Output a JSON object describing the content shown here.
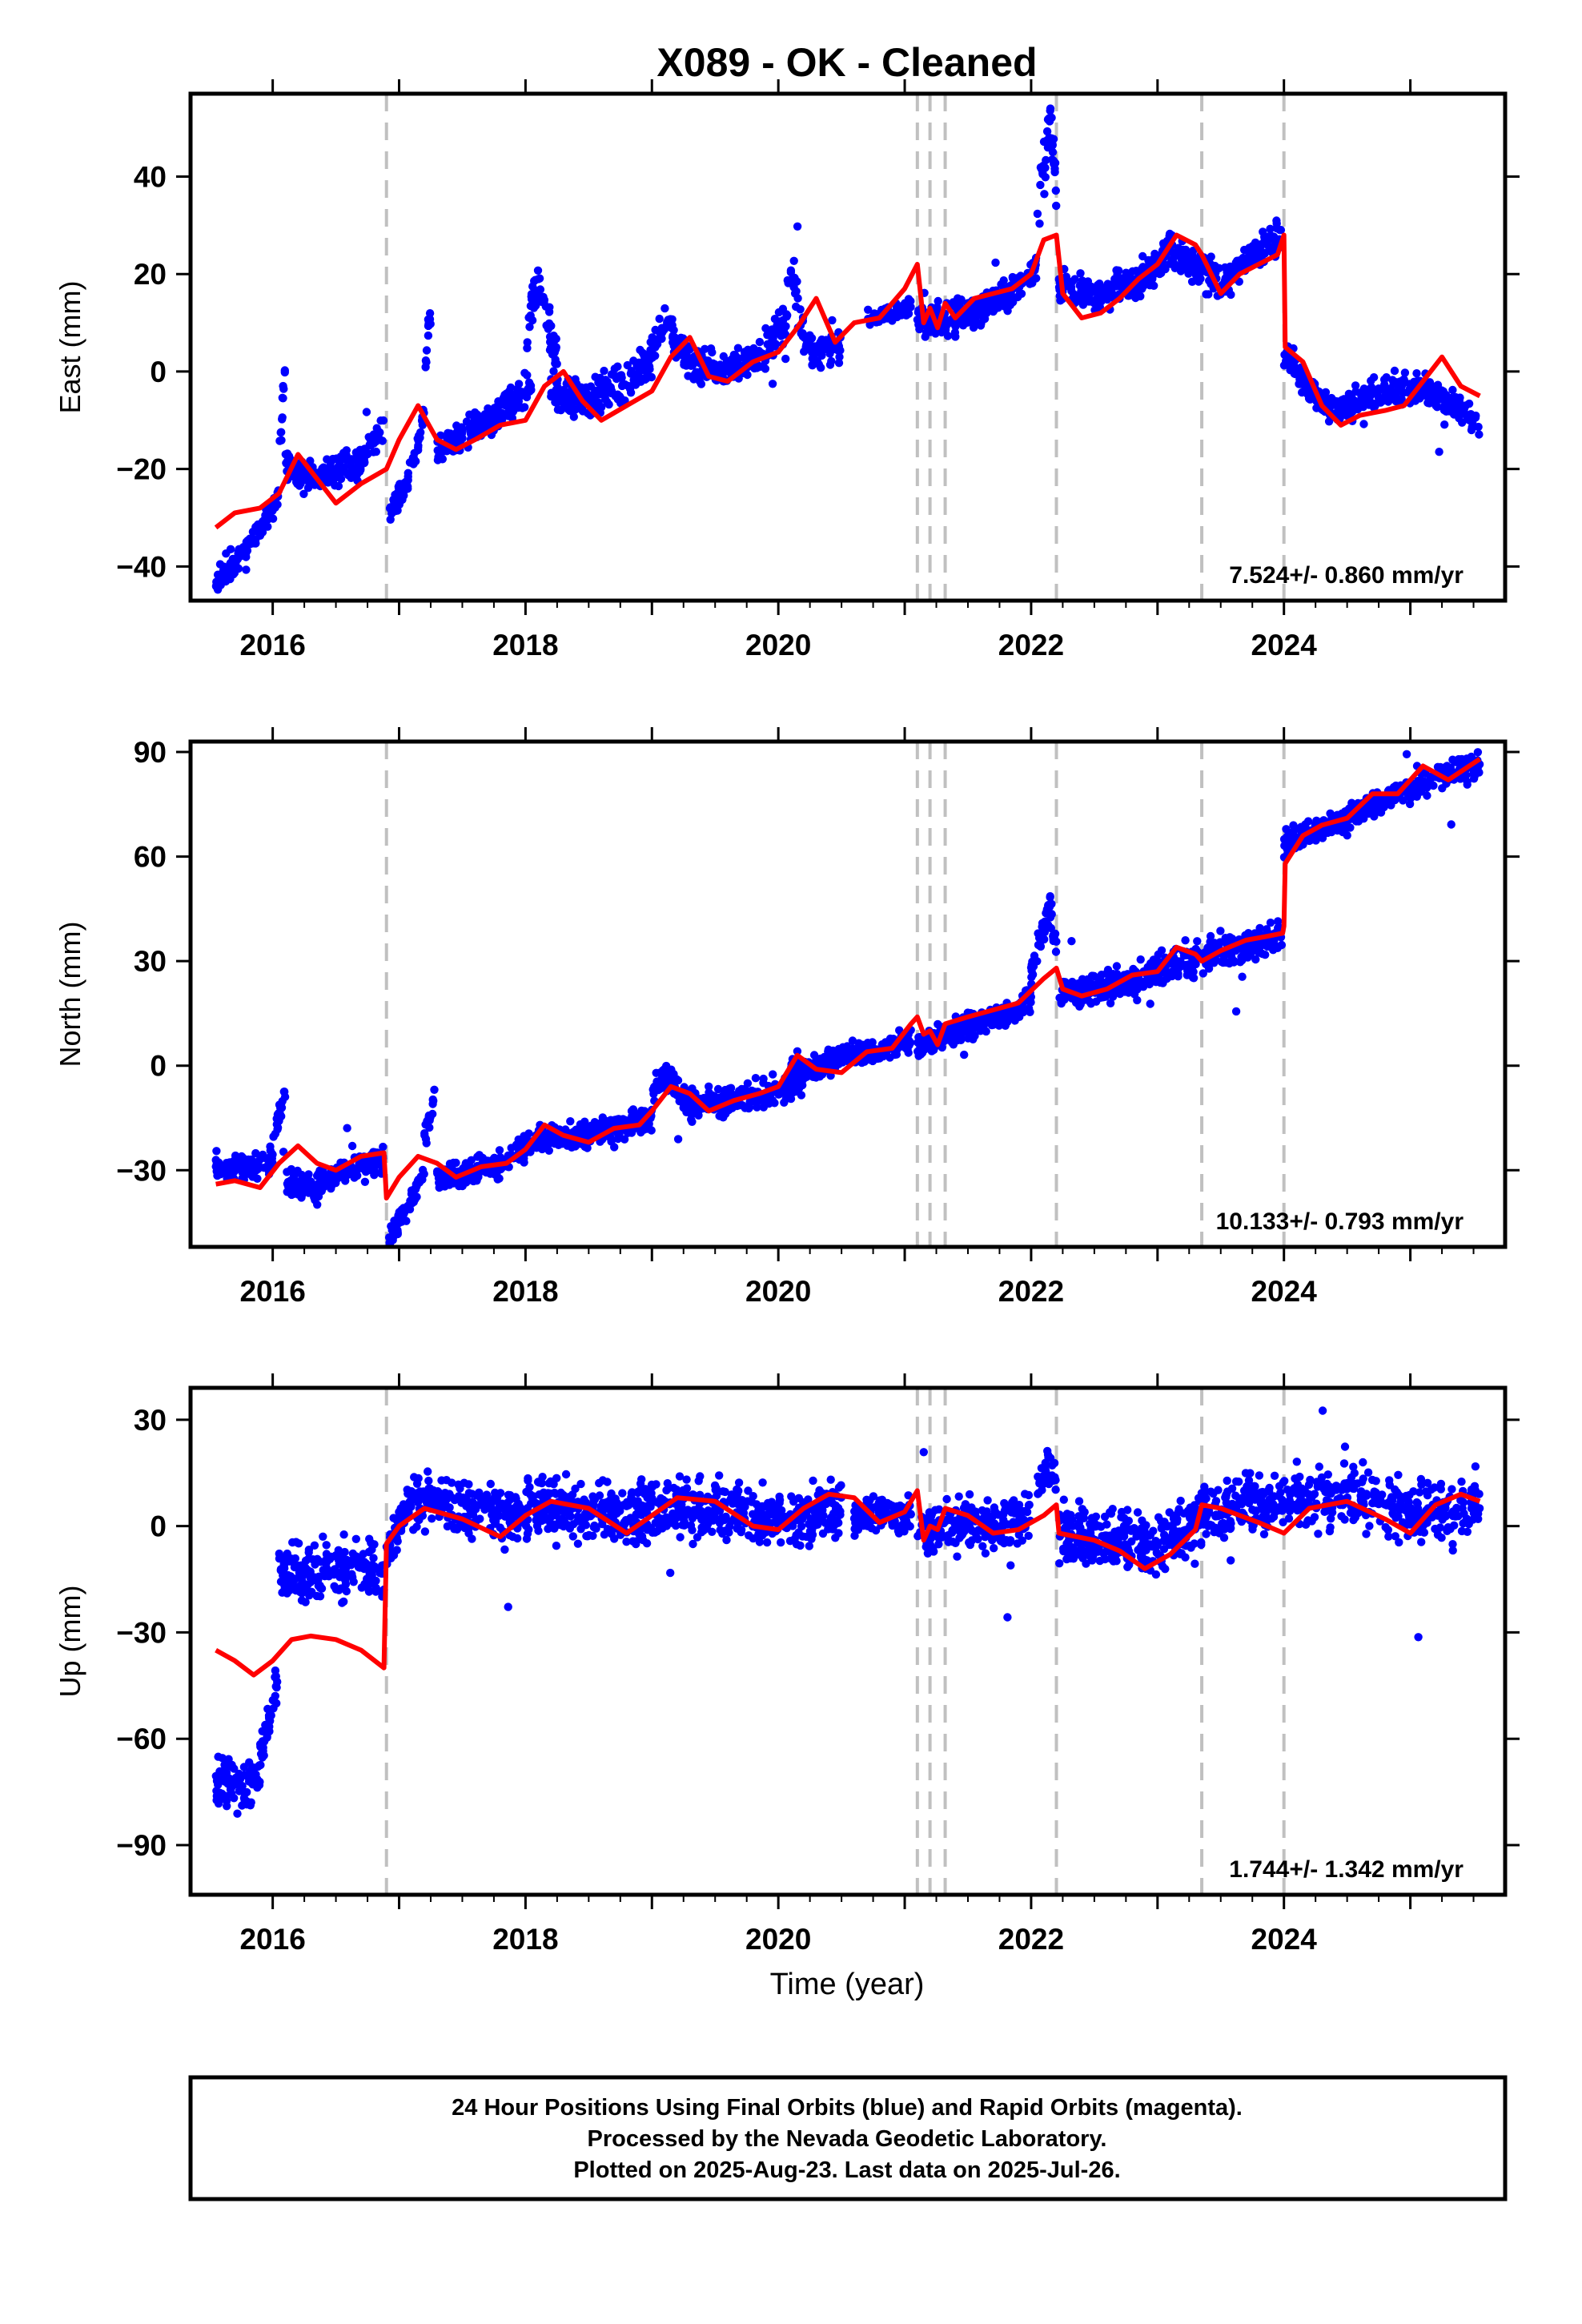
{
  "title": "X089  - OK - Cleaned",
  "xlabel": "Time (year)",
  "footer": [
    "24 Hour Positions Using Final Orbits (blue) and Rapid Orbits (magenta).",
    "Processed by the Nevada Geodetic Laboratory.",
    "Plotted on 2025-Aug-23. Last data on 2025-Jul-26."
  ],
  "colors": {
    "points": "#0000ff",
    "model": "#ff0000",
    "break_lines": "#c0c0c0",
    "frame": "#000000"
  },
  "chart_data": [
    {
      "type": "scatter",
      "component": "east",
      "ylabel": "East (mm)",
      "rate_label": "7.524+/- 0.860 mm/yr",
      "xlim": [
        2015.35,
        2025.75
      ],
      "ylim": [
        -47,
        57
      ],
      "yticks": [
        -40,
        -20,
        0,
        20,
        40
      ],
      "xticks": [
        2016,
        2018,
        2020,
        2022,
        2024
      ],
      "breaks": [
        2016.9,
        2021.1,
        2021.2,
        2021.32,
        2022.2,
        2023.35,
        2024.0
      ],
      "model_line": {
        "x": [
          2015.55,
          2015.7,
          2015.9,
          2016.05,
          2016.2,
          2016.35,
          2016.5,
          2016.7,
          2016.9,
          2017.0,
          2017.15,
          2017.3,
          2017.45,
          2017.6,
          2017.8,
          2018.0,
          2018.15,
          2018.3,
          2018.45,
          2018.6,
          2018.8,
          2019.0,
          2019.15,
          2019.3,
          2019.45,
          2019.6,
          2019.8,
          2020.0,
          2020.15,
          2020.3,
          2020.45,
          2020.6,
          2020.8,
          2021.0,
          2021.1,
          2021.15,
          2021.2,
          2021.26,
          2021.32,
          2021.4,
          2021.55,
          2021.7,
          2021.85,
          2022.0,
          2022.1,
          2022.2,
          2022.25,
          2022.4,
          2022.55,
          2022.7,
          2022.85,
          2023.0,
          2023.15,
          2023.3,
          2023.35,
          2023.5,
          2023.65,
          2023.8,
          2023.95,
          2024.0,
          2024.01,
          2024.15,
          2024.3,
          2024.45,
          2024.6,
          2024.8,
          2024.95,
          2025.1,
          2025.25,
          2025.4,
          2025.55
        ],
        "y": [
          -32,
          -29,
          -28,
          -25,
          -17,
          -22,
          -27,
          -23,
          -20,
          -14,
          -7,
          -14,
          -16,
          -14,
          -11,
          -10,
          -3,
          0,
          -6,
          -10,
          -7,
          -4,
          3,
          7,
          -1,
          -2,
          2,
          4,
          9,
          15,
          6,
          10,
          11,
          17,
          22,
          10,
          13,
          9,
          14,
          11,
          15,
          16,
          17,
          20,
          27,
          28,
          16,
          11,
          12,
          15,
          19,
          22,
          28,
          26,
          24,
          16,
          20,
          22,
          24,
          28,
          5,
          2,
          -7,
          -11,
          -9,
          -8,
          -7,
          -2,
          3,
          -3,
          -5
        ]
      },
      "scatter_segments": [
        {
          "x": [
            2015.55,
            2015.7,
            2015.85,
            2016.0,
            2016.05
          ],
          "y": [
            -44,
            -39,
            -35,
            -28,
            -25
          ],
          "spread": 2.0
        },
        {
          "x": [
            2016.05,
            2016.1
          ],
          "y": [
            -18,
            1
          ],
          "spread": 2.5
        },
        {
          "x": [
            2016.1,
            2016.3,
            2016.5,
            2016.7,
            2016.88
          ],
          "y": [
            -19,
            -22,
            -20,
            -18,
            -12
          ],
          "spread": 2.5
        },
        {
          "x": [
            2016.92,
            2017.0,
            2017.1,
            2017.2
          ],
          "y": [
            -29,
            -26,
            -20,
            -8
          ],
          "spread": 2.0
        },
        {
          "x": [
            2017.2,
            2017.25
          ],
          "y": [
            0,
            13
          ],
          "spread": 2.5
        },
        {
          "x": [
            2017.3,
            2017.6,
            2017.9,
            2018.05
          ],
          "y": [
            -16,
            -12,
            -7,
            -3
          ],
          "spread": 3.0
        },
        {
          "x": [
            2018.0,
            2018.1,
            2018.25
          ],
          "y": [
            5,
            20,
            3
          ],
          "spread": 4.0
        },
        {
          "x": [
            2018.2,
            2018.5,
            2018.8,
            2019.0
          ],
          "y": [
            -4,
            -6,
            -2,
            2
          ],
          "spread": 3.0
        },
        {
          "x": [
            2019.0,
            2019.1,
            2019.3,
            2019.6,
            2019.9
          ],
          "y": [
            4,
            10,
            2,
            0,
            4
          ],
          "spread": 3.0
        },
        {
          "x": [
            2019.9,
            2020.05,
            2020.1,
            2020.2
          ],
          "y": [
            5,
            10,
            22,
            8
          ],
          "spread": 3.5
        },
        {
          "x": [
            2020.2,
            2020.35,
            2020.5
          ],
          "y": [
            5,
            4,
            5
          ],
          "spread": 2.5
        },
        {
          "x": [
            2020.7,
            2020.9,
            2021.05
          ],
          "y": [
            11,
            12,
            13
          ],
          "spread": 1.5
        },
        {
          "x": [
            2021.1,
            2021.3,
            2021.6,
            2021.9,
            2022.05
          ],
          "y": [
            12,
            10,
            13,
            17,
            22
          ],
          "spread": 3.0
        },
        {
          "x": [
            2022.05,
            2022.1,
            2022.15,
            2022.2
          ],
          "y": [
            30,
            40,
            52,
            38
          ],
          "spread": 4.5
        },
        {
          "x": [
            2022.22,
            2022.5,
            2022.8,
            2023.1,
            2023.3,
            2023.5,
            2023.8,
            2023.98
          ],
          "y": [
            18,
            15,
            18,
            24,
            22,
            18,
            25,
            28
          ],
          "spread": 3.0
        },
        {
          "x": [
            2024.0,
            2024.2,
            2024.4,
            2024.7,
            2025.0,
            2025.3,
            2025.55
          ],
          "y": [
            4,
            -4,
            -8,
            -5,
            -3,
            -6,
            -11
          ],
          "spread": 2.5
        }
      ]
    },
    {
      "type": "scatter",
      "component": "north",
      "ylabel": "North (mm)",
      "rate_label": "10.133+/- 0.793 mm/yr",
      "xlim": [
        2015.35,
        2025.75
      ],
      "ylim": [
        -52,
        93
      ],
      "yticks": [
        -30,
        0,
        30,
        60,
        90
      ],
      "xticks": [
        2016,
        2018,
        2020,
        2022,
        2024
      ],
      "breaks": [
        2016.9,
        2021.1,
        2021.2,
        2021.32,
        2022.2,
        2023.35,
        2024.0
      ],
      "model_line": {
        "x": [
          2015.55,
          2015.7,
          2015.9,
          2016.05,
          2016.2,
          2016.35,
          2016.5,
          2016.7,
          2016.88,
          2016.9,
          2017.0,
          2017.15,
          2017.3,
          2017.45,
          2017.65,
          2017.85,
          2018.0,
          2018.15,
          2018.3,
          2018.5,
          2018.7,
          2018.9,
          2019.0,
          2019.15,
          2019.3,
          2019.45,
          2019.65,
          2019.85,
          2020.0,
          2020.15,
          2020.3,
          2020.5,
          2020.7,
          2020.9,
          2021.05,
          2021.1,
          2021.15,
          2021.2,
          2021.26,
          2021.32,
          2021.5,
          2021.7,
          2021.9,
          2022.1,
          2022.2,
          2022.25,
          2022.4,
          2022.6,
          2022.8,
          2023.0,
          2023.15,
          2023.3,
          2023.35,
          2023.5,
          2023.7,
          2023.85,
          2023.99,
          2024.0,
          2024.01,
          2024.15,
          2024.3,
          2024.5,
          2024.7,
          2024.9,
          2025.1,
          2025.3,
          2025.55
        ],
        "y": [
          -34,
          -33,
          -35,
          -28,
          -23,
          -28,
          -30,
          -26,
          -25,
          -38,
          -32,
          -26,
          -28,
          -32,
          -29,
          -28,
          -24,
          -17,
          -20,
          -22,
          -18,
          -17,
          -13,
          -6,
          -8,
          -13,
          -10,
          -8,
          -6,
          3,
          -1,
          -2,
          4,
          5,
          12,
          14,
          9,
          10,
          6,
          12,
          14,
          16,
          18,
          25,
          28,
          22,
          20,
          22,
          26,
          27,
          34,
          32,
          30,
          33,
          36,
          37,
          38,
          40,
          58,
          66,
          69,
          71,
          78,
          78,
          86,
          82,
          88
        ]
      },
      "scatter_segments": [
        {
          "x": [
            2015.55,
            2015.8,
            2016.0
          ],
          "y": [
            -29,
            -30,
            -26
          ],
          "spread": 3.0
        },
        {
          "x": [
            2016.0,
            2016.05,
            2016.1
          ],
          "y": [
            -22,
            -14,
            -8
          ],
          "spread": 3.0
        },
        {
          "x": [
            2016.1,
            2016.3,
            2016.6,
            2016.88
          ],
          "y": [
            -33,
            -35,
            -30,
            -28
          ],
          "spread": 3.5
        },
        {
          "x": [
            2016.92,
            2017.05,
            2017.2
          ],
          "y": [
            -50,
            -42,
            -30
          ],
          "spread": 2.5
        },
        {
          "x": [
            2017.2,
            2017.28
          ],
          "y": [
            -22,
            -8
          ],
          "spread": 3.0
        },
        {
          "x": [
            2017.3,
            2017.6,
            2017.9,
            2018.1
          ],
          "y": [
            -33,
            -30,
            -27,
            -21
          ],
          "spread": 3.0
        },
        {
          "x": [
            2018.1,
            2018.4,
            2018.7,
            2019.0
          ],
          "y": [
            -20,
            -20,
            -18,
            -15
          ],
          "spread": 3.5
        },
        {
          "x": [
            2019.0,
            2019.15,
            2019.3
          ],
          "y": [
            -8,
            -3,
            -10
          ],
          "spread": 4.0
        },
        {
          "x": [
            2019.3,
            2019.6,
            2019.9,
            2020.2
          ],
          "y": [
            -11,
            -10,
            -8,
            -4
          ],
          "spread": 3.5
        },
        {
          "x": [
            2020.1,
            2020.3,
            2020.5,
            2020.8,
            2021.05
          ],
          "y": [
            0,
            -1,
            3,
            4,
            7
          ],
          "spread": 3.0
        },
        {
          "x": [
            2021.1,
            2021.4,
            2021.7,
            2022.0
          ],
          "y": [
            5,
            10,
            14,
            18
          ],
          "spread": 3.0
        },
        {
          "x": [
            2022.0,
            2022.1,
            2022.15,
            2022.2
          ],
          "y": [
            28,
            38,
            47,
            35
          ],
          "spread": 4.0
        },
        {
          "x": [
            2022.22,
            2022.5,
            2022.8,
            2023.1,
            2023.4,
            2023.7,
            2023.99
          ],
          "y": [
            20,
            22,
            24,
            28,
            32,
            34,
            38
          ],
          "spread": 4.0
        },
        {
          "x": [
            2024.0,
            2024.2,
            2024.5,
            2024.8,
            2025.1,
            2025.3,
            2025.55
          ],
          "y": [
            63,
            67,
            71,
            76,
            81,
            84,
            86
          ],
          "spread": 3.0
        }
      ]
    },
    {
      "type": "scatter",
      "component": "up",
      "ylabel": "Up (mm)",
      "rate_label": "1.744+/- 1.342 mm/yr",
      "xlim": [
        2015.35,
        2025.75
      ],
      "ylim": [
        -104,
        39
      ],
      "yticks": [
        -90,
        -60,
        -30,
        0,
        30
      ],
      "xticks": [
        2016,
        2018,
        2020,
        2022,
        2024
      ],
      "breaks": [
        2016.9,
        2021.1,
        2021.2,
        2021.32,
        2022.2,
        2023.35,
        2024.0
      ],
      "model_line": {
        "x": [
          2015.55,
          2015.7,
          2015.85,
          2016.0,
          2016.15,
          2016.3,
          2016.5,
          2016.7,
          2016.88,
          2016.9,
          2017.0,
          2017.2,
          2017.5,
          2017.8,
          2018.0,
          2018.2,
          2018.5,
          2018.8,
          2019.0,
          2019.2,
          2019.5,
          2019.8,
          2020.0,
          2020.2,
          2020.4,
          2020.6,
          2020.8,
          2021.0,
          2021.1,
          2021.15,
          2021.2,
          2021.26,
          2021.32,
          2021.5,
          2021.7,
          2021.9,
          2022.1,
          2022.2,
          2022.22,
          2022.5,
          2022.7,
          2022.9,
          2023.1,
          2023.3,
          2023.35,
          2023.5,
          2023.8,
          2024.0,
          2024.2,
          2024.5,
          2024.8,
          2025.0,
          2025.2,
          2025.4,
          2025.55
        ],
        "y": [
          -35,
          -38,
          -42,
          -38,
          -32,
          -31,
          -32,
          -35,
          -40,
          -5,
          0,
          5,
          2,
          -3,
          3,
          7,
          5,
          -2,
          3,
          8,
          7,
          0,
          -1,
          5,
          9,
          8,
          1,
          4,
          10,
          -4,
          0,
          -1,
          5,
          3,
          -2,
          -1,
          3,
          6,
          -2,
          -4,
          -7,
          -12,
          -8,
          -1,
          6,
          5,
          1,
          -2,
          5,
          7,
          2,
          -2,
          6,
          9,
          7
        ]
      },
      "scatter_segments": [
        {
          "x": [
            2015.55,
            2015.75,
            2015.9
          ],
          "y": [
            -72,
            -74,
            -70
          ],
          "spread": 6.0
        },
        {
          "x": [
            2015.9,
            2015.97,
            2016.05
          ],
          "y": [
            -65,
            -55,
            -42
          ],
          "spread": 4.0
        },
        {
          "x": [
            2016.05,
            2016.3,
            2016.6,
            2016.88
          ],
          "y": [
            -14,
            -13,
            -11,
            -15
          ],
          "spread": 7.0
        },
        {
          "x": [
            2016.9,
            2017.0,
            2017.1
          ],
          "y": [
            -8,
            0,
            8
          ],
          "spread": 5.0
        },
        {
          "x": [
            2017.1,
            2017.5,
            2017.9,
            2018.2
          ],
          "y": [
            8,
            5,
            4,
            8
          ],
          "spread": 7.0
        },
        {
          "x": [
            2018.2,
            2018.6,
            2019.0,
            2019.4,
            2019.8,
            2020.1,
            2020.5
          ],
          "y": [
            5,
            3,
            5,
            5,
            3,
            2,
            4
          ],
          "spread": 7.0
        },
        {
          "x": [
            2020.6,
            2020.9,
            2021.05
          ],
          "y": [
            2,
            4,
            3
          ],
          "spread": 4.0
        },
        {
          "x": [
            2021.1,
            2021.4,
            2021.7,
            2022.0
          ],
          "y": [
            -2,
            0,
            0,
            3
          ],
          "spread": 6.0
        },
        {
          "x": [
            2022.05,
            2022.15,
            2022.2
          ],
          "y": [
            10,
            18,
            12
          ],
          "spread": 4.0
        },
        {
          "x": [
            2022.22,
            2022.6,
            2023.0,
            2023.35,
            2023.7,
            2024.1,
            2024.5,
            2024.9,
            2025.3,
            2025.55
          ],
          "y": [
            -3,
            -4,
            -5,
            2,
            6,
            7,
            9,
            4,
            3,
            8
          ],
          "spread": 7.0
        }
      ]
    }
  ]
}
